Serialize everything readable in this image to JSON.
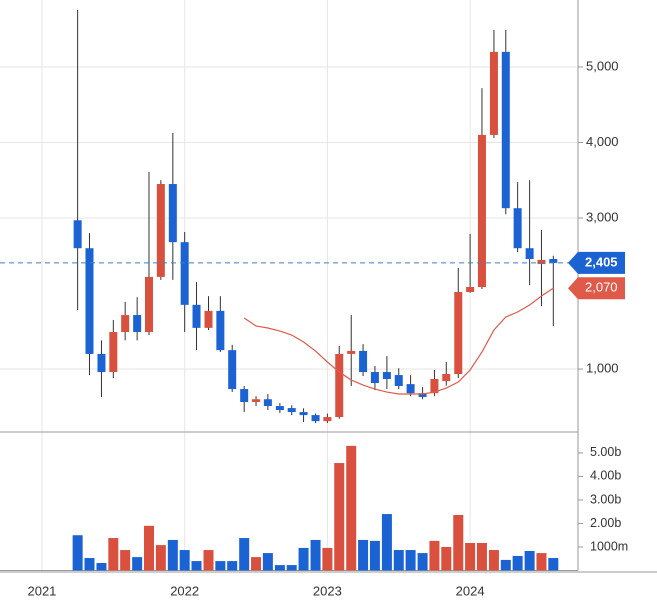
{
  "chart_data": {
    "type": "candlestick",
    "up_color": "#d9503f",
    "down_color": "#1b63d3",
    "x": [
      2021.25,
      2021.333,
      2021.417,
      2021.5,
      2021.583,
      2021.667,
      2021.75,
      2021.833,
      2021.917,
      2022.0,
      2022.083,
      2022.167,
      2022.25,
      2022.333,
      2022.417,
      2022.5,
      2022.583,
      2022.667,
      2022.75,
      2022.833,
      2022.917,
      2023.0,
      2023.083,
      2023.167,
      2023.25,
      2023.333,
      2023.417,
      2023.5,
      2023.583,
      2023.667,
      2023.75,
      2023.833,
      2023.917,
      2024.0,
      2024.083,
      2024.167,
      2024.25,
      2024.333,
      2024.417,
      2024.5,
      2024.583
    ],
    "open": [
      2970,
      2600,
      1200,
      960,
      1490,
      1715,
      1490,
      2220,
      3450,
      2680,
      1850,
      1545,
      1770,
      1250,
      735,
      563,
      600,
      510,
      483,
      430,
      390,
      310,
      364,
      1200,
      1240,
      960,
      960,
      920,
      800,
      680,
      680,
      840,
      934,
      2020,
      2086,
      4100,
      5200,
      3130,
      2600,
      2390,
      2457
    ],
    "high": [
      5755,
      2800,
      1380,
      1650,
      1890,
      1950,
      3610,
      3500,
      4125,
      2815,
      2150,
      1965,
      1965,
      1320,
      775,
      640,
      670,
      550,
      520,
      480,
      410,
      410,
      1305,
      1715,
      1330,
      1040,
      1170,
      1010,
      920,
      760,
      987,
      1093,
      2340,
      2790,
      4720,
      5490,
      5490,
      3475,
      3500,
      2840,
      2500
    ],
    "low": [
      1780,
      920,
      630,
      880,
      1380,
      1380,
      1450,
      2180,
      2180,
      1490,
      1250,
      1515,
      1225,
      695,
      430,
      510,
      457,
      417,
      390,
      298,
      285,
      285,
      340,
      775,
      907,
      720,
      735,
      735,
      640,
      600,
      640,
      780,
      880,
      2010,
      2060,
      4060,
      3050,
      2550,
      2110,
      1835,
      1570
    ],
    "close": [
      2600,
      1200,
      960,
      1490,
      1715,
      1490,
      2220,
      3450,
      2680,
      1850,
      1545,
      1770,
      1250,
      735,
      563,
      600,
      510,
      457,
      430,
      390,
      310,
      364,
      1200,
      1240,
      960,
      815,
      868,
      775,
      680,
      630,
      868,
      934,
      2020,
      2086,
      4100,
      5200,
      3130,
      2600,
      2457,
      2445,
      2405
    ],
    "ma": {
      "color": "#e05a4a",
      "values": [
        null,
        null,
        null,
        null,
        null,
        null,
        null,
        null,
        null,
        null,
        null,
        null,
        null,
        null,
        1675,
        1570,
        1543,
        1503,
        1450,
        1358,
        1238,
        1093,
        960,
        854,
        788,
        735,
        695,
        669,
        669,
        669,
        695,
        748,
        828,
        987,
        1225,
        1517,
        1689,
        1755,
        1848,
        1967,
        2070
      ],
      "last": {
        "value": 2070,
        "label": "2,070"
      }
    },
    "last": {
      "value": 2405,
      "label": "2,405"
    },
    "ylim": [
      166,
      5887
    ],
    "yticks": [
      {
        "value": 1000,
        "label": "1,000"
      },
      {
        "value": 3000,
        "label": "3,000"
      },
      {
        "value": 4000,
        "label": "4,000"
      },
      {
        "value": 5000,
        "label": "5,000"
      }
    ],
    "xlim": [
      2020.706,
      2024.756
    ],
    "xticks": [
      2021,
      2022,
      2023,
      2024
    ],
    "grid": true,
    "volume": {
      "values": [
        1.5,
        0.53,
        0.32,
        1.38,
        0.87,
        0.57,
        1.9,
        1.08,
        1.3,
        0.87,
        0.4,
        0.87,
        0.4,
        0.4,
        1.38,
        0.57,
        0.74,
        0.23,
        0.23,
        0.96,
        1.3,
        0.96,
        4.57,
        5.3,
        1.3,
        1.26,
        2.4,
        0.87,
        0.87,
        0.74,
        1.26,
        1.0,
        2.36,
        1.17,
        1.17,
        0.87,
        0.45,
        0.62,
        0.83,
        0.74,
        0.53
      ],
      "ylim": [
        0,
        5.89
      ],
      "yticks": [
        {
          "value": 1,
          "label": "1000m"
        },
        {
          "value": 2,
          "label": "2.00b"
        },
        {
          "value": 3,
          "label": "3.00b"
        },
        {
          "value": 4,
          "label": "4.00b"
        },
        {
          "value": 5,
          "label": "5.00b"
        }
      ]
    }
  }
}
